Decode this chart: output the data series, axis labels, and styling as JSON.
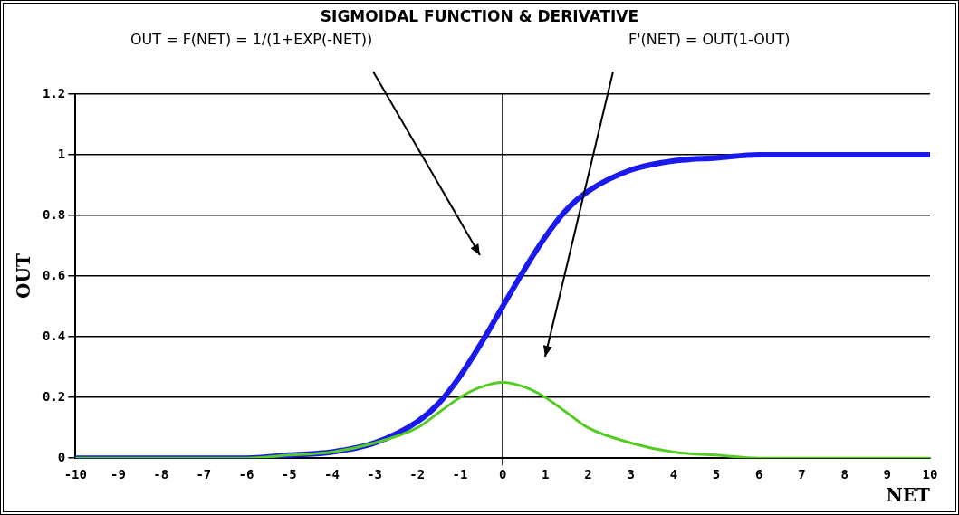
{
  "chart_data": {
    "type": "line",
    "title": "SIGMOIDAL  FUNCTION & DERIVATIVE",
    "xlabel": "NET",
    "ylabel": "OUT",
    "annotations": [
      "OUT = F(NET) = 1/(1+EXP(-NET))",
      "F'(NET) = OUT(1-OUT)"
    ],
    "x": [
      -10,
      -9,
      -8,
      -7,
      -6,
      -5,
      -4,
      -3,
      -2,
      -1.5,
      -1,
      -0.5,
      0,
      0.5,
      1,
      1.5,
      2,
      3,
      4,
      5,
      6,
      7,
      8,
      9,
      10
    ],
    "series": [
      {
        "color": "#1a1aee",
        "values": [
          0,
          0,
          0,
          0,
          0,
          0.01,
          0.02,
          0.05,
          0.12,
          0.18,
          0.27,
          0.38,
          0.5,
          0.62,
          0.73,
          0.82,
          0.88,
          0.95,
          0.98,
          0.99,
          1,
          1,
          1,
          1,
          1
        ]
      },
      {
        "color": "#55cc22",
        "values": [
          0,
          0,
          0,
          0,
          0,
          0.01,
          0.02,
          0.05,
          0.1,
          0.15,
          0.2,
          0.235,
          0.25,
          0.235,
          0.2,
          0.15,
          0.1,
          0.05,
          0.02,
          0.01,
          0,
          0,
          0,
          0,
          0
        ]
      }
    ],
    "xlim": [
      -10,
      10
    ],
    "xticks": [
      -10,
      -9,
      -8,
      -7,
      -6,
      -5,
      -4,
      -3,
      -2,
      -1,
      0,
      1,
      2,
      3,
      4,
      5,
      6,
      7,
      8,
      9,
      10
    ],
    "ylim": [
      0,
      1.2
    ],
    "yticks": [
      0,
      0.2,
      0.4,
      0.6,
      0.8,
      1,
      1.2
    ],
    "grid": "y",
    "legend": false,
    "marker": "none",
    "line_style": "solid"
  }
}
